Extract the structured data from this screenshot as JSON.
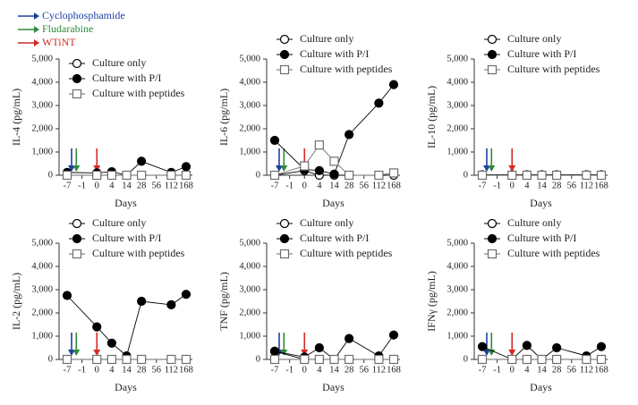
{
  "treatments": [
    {
      "name": "Cyclophosphamide",
      "color": "#1f3fa0"
    },
    {
      "name": "Fludarabine",
      "color": "#2e8b3a"
    },
    {
      "name": "WTiNT",
      "color": "#d42a2a"
    }
  ],
  "chart_data": [
    {
      "type": "line",
      "ylabel": "IL-4 (pg/mL)",
      "xlabel": "Days",
      "x": [
        -7,
        0,
        4,
        14,
        28,
        112,
        168
      ],
      "xticks": [
        -7,
        -1,
        0,
        4,
        14,
        28,
        56,
        112,
        168
      ],
      "xlim": [
        -7,
        168
      ],
      "ylim": [
        0,
        5000
      ],
      "yticks": [
        0,
        {
          "value": 1000,
          "label": "1,000"
        },
        {
          "value": 2000,
          "label": "2,000"
        },
        {
          "value": 3000,
          "label": "3,000"
        },
        {
          "value": 4000,
          "label": "4,000"
        },
        {
          "value": 5000,
          "label": "5,000"
        }
      ],
      "series": [
        {
          "name": "Culture only",
          "color": "#000000",
          "marker": "circle-open",
          "values": [
            0,
            0,
            0,
            0,
            0,
            0,
            0
          ]
        },
        {
          "name": "Culture with P/I",
          "color": "#000000",
          "marker": "circle-filled",
          "values": [
            120,
            100,
            150,
            0,
            600,
            120,
            370
          ]
        },
        {
          "name": "Culture with peptides",
          "color": "#6e6e6e",
          "marker": "square-open",
          "values": [
            0,
            0,
            0,
            0,
            0,
            0,
            0
          ]
        }
      ]
    },
    {
      "type": "line",
      "ylabel": "IL-6 (pg/mL)",
      "xlabel": "Days",
      "x": [
        -7,
        0,
        4,
        14,
        28,
        112,
        168
      ],
      "xticks": [
        -7,
        -1,
        0,
        4,
        14,
        28,
        56,
        112,
        168
      ],
      "xlim": [
        -7,
        168
      ],
      "ylim": [
        0,
        5000
      ],
      "yticks": [
        0,
        {
          "value": 1000,
          "label": "1,000"
        },
        {
          "value": 2000,
          "label": "2,000"
        },
        {
          "value": 3000,
          "label": "3,000"
        },
        {
          "value": 4000,
          "label": "4,000"
        },
        {
          "value": 5000,
          "label": "5,000"
        }
      ],
      "series": [
        {
          "name": "Culture only",
          "color": "#000000",
          "marker": "circle-open",
          "values": [
            0,
            200,
            0,
            0,
            0,
            0,
            0
          ]
        },
        {
          "name": "Culture with P/I",
          "color": "#000000",
          "marker": "circle-filled",
          "values": [
            1500,
            250,
            200,
            50,
            1750,
            3100,
            3900
          ]
        },
        {
          "name": "Culture with peptides",
          "color": "#6e6e6e",
          "marker": "square-open",
          "values": [
            0,
            400,
            1300,
            600,
            0,
            0,
            100
          ]
        }
      ]
    },
    {
      "type": "line",
      "ylabel": "IL-10 (pg/mL)",
      "xlabel": "Days",
      "x": [
        -7,
        0,
        4,
        14,
        28,
        112,
        168
      ],
      "xticks": [
        -7,
        -1,
        0,
        4,
        14,
        28,
        56,
        112,
        168
      ],
      "xlim": [
        -7,
        168
      ],
      "ylim": [
        0,
        5000
      ],
      "yticks": [
        0,
        {
          "value": 1000,
          "label": "1,000"
        },
        {
          "value": 2000,
          "label": "2,000"
        },
        {
          "value": 3000,
          "label": "3,000"
        },
        {
          "value": 4000,
          "label": "4,000"
        },
        {
          "value": 5000,
          "label": "5,000"
        }
      ],
      "series": [
        {
          "name": "Culture only",
          "color": "#000000",
          "marker": "circle-open",
          "values": [
            0,
            0,
            0,
            0,
            0,
            0,
            0
          ]
        },
        {
          "name": "Culture with P/I",
          "color": "#000000",
          "marker": "circle-filled",
          "values": [
            20,
            20,
            20,
            20,
            20,
            20,
            20
          ]
        },
        {
          "name": "Culture with peptides",
          "color": "#6e6e6e",
          "marker": "square-open",
          "values": [
            0,
            0,
            0,
            0,
            0,
            0,
            0
          ]
        }
      ]
    },
    {
      "type": "line",
      "ylabel": "IL-2 (pg/mL)",
      "xlabel": "Days",
      "x": [
        -7,
        0,
        4,
        14,
        28,
        112,
        168
      ],
      "xticks": [
        -7,
        -1,
        0,
        4,
        14,
        28,
        56,
        112,
        168
      ],
      "xlim": [
        -7,
        168
      ],
      "ylim": [
        0,
        5000
      ],
      "yticks": [
        0,
        {
          "value": 1000,
          "label": "1,000"
        },
        {
          "value": 2000,
          "label": "2,000"
        },
        {
          "value": 3000,
          "label": "3,000"
        },
        {
          "value": 4000,
          "label": "4,000"
        },
        {
          "value": 5000,
          "label": "5,000"
        }
      ],
      "series": [
        {
          "name": "Culture only",
          "color": "#000000",
          "marker": "circle-open",
          "values": [
            0,
            0,
            0,
            0,
            0,
            0,
            0
          ]
        },
        {
          "name": "Culture with P/I",
          "color": "#000000",
          "marker": "circle-filled",
          "values": [
            2750,
            1400,
            700,
            150,
            2500,
            2350,
            2800
          ]
        },
        {
          "name": "Culture with peptides",
          "color": "#6e6e6e",
          "marker": "square-open",
          "values": [
            0,
            0,
            0,
            0,
            0,
            0,
            0
          ]
        }
      ]
    },
    {
      "type": "line",
      "ylabel": "TNF (pg/mL)",
      "xlabel": "Days",
      "x": [
        -7,
        0,
        4,
        14,
        28,
        112,
        168
      ],
      "xticks": [
        -7,
        -1,
        0,
        4,
        14,
        28,
        56,
        112,
        168
      ],
      "xlim": [
        -7,
        168
      ],
      "ylim": [
        0,
        5000
      ],
      "yticks": [
        0,
        {
          "value": 1000,
          "label": "1,000"
        },
        {
          "value": 2000,
          "label": "2,000"
        },
        {
          "value": 3000,
          "label": "3,000"
        },
        {
          "value": 4000,
          "label": "4,000"
        },
        {
          "value": 5000,
          "label": "5,000"
        }
      ],
      "series": [
        {
          "name": "Culture only",
          "color": "#000000",
          "marker": "circle-open",
          "values": [
            350,
            0,
            0,
            0,
            0,
            0,
            0
          ]
        },
        {
          "name": "Culture with P/I",
          "color": "#000000",
          "marker": "circle-filled",
          "values": [
            350,
            100,
            500,
            0,
            900,
            150,
            1050
          ]
        },
        {
          "name": "Culture with peptides",
          "color": "#6e6e6e",
          "marker": "square-open",
          "values": [
            0,
            0,
            0,
            0,
            0,
            0,
            0
          ]
        }
      ]
    },
    {
      "type": "line",
      "ylabel": "IFNγ (pg/mL)",
      "xlabel": "Days",
      "x": [
        -7,
        0,
        4,
        14,
        28,
        112,
        168
      ],
      "xticks": [
        -7,
        -1,
        0,
        4,
        14,
        28,
        56,
        112,
        168
      ],
      "xlim": [
        -7,
        168
      ],
      "ylim": [
        0,
        5000
      ],
      "yticks": [
        0,
        {
          "value": 1000,
          "label": "1,000"
        },
        {
          "value": 2000,
          "label": "2,000"
        },
        {
          "value": 3000,
          "label": "3,000"
        },
        {
          "value": 4000,
          "label": "4,000"
        },
        {
          "value": 5000,
          "label": "5,000"
        }
      ],
      "series": [
        {
          "name": "Culture only",
          "color": "#000000",
          "marker": "circle-open",
          "values": [
            0,
            0,
            0,
            0,
            0,
            0,
            0
          ]
        },
        {
          "name": "Culture with P/I",
          "color": "#000000",
          "marker": "circle-filled",
          "values": [
            550,
            0,
            600,
            0,
            500,
            150,
            550
          ]
        },
        {
          "name": "Culture with peptides",
          "color": "#6e6e6e",
          "marker": "square-open",
          "values": [
            0,
            0,
            0,
            0,
            0,
            0,
            0
          ]
        }
      ]
    }
  ]
}
